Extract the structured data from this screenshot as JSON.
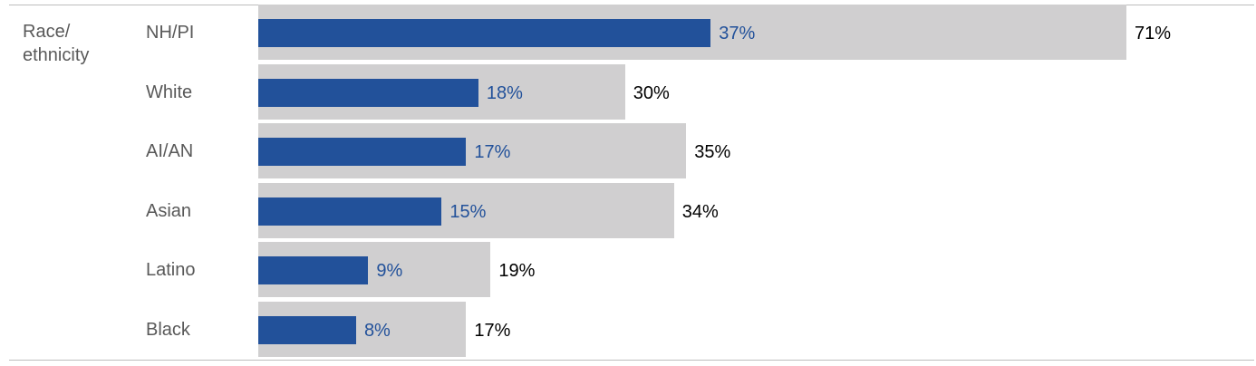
{
  "chart_data": {
    "type": "bar",
    "orientation": "horizontal",
    "group_label": "Race/\nethnicity",
    "categories": [
      "NH/PI",
      "White",
      "AI/AN",
      "Asian",
      "Latino",
      "Black"
    ],
    "series": [
      {
        "values": [
          37,
          18,
          17,
          15,
          9,
          8
        ],
        "color": "#22519a",
        "labels": [
          "37%",
          "18%",
          "17%",
          "15%",
          "9%",
          "8%"
        ]
      },
      {
        "values": [
          71,
          30,
          35,
          34,
          19,
          17
        ],
        "color": "#d0cfd0",
        "labels": [
          "71%",
          "30%",
          "35%",
          "34%",
          "19%",
          "17%"
        ]
      }
    ],
    "xlim": [
      0,
      71
    ],
    "grid": false,
    "legend": "none"
  }
}
